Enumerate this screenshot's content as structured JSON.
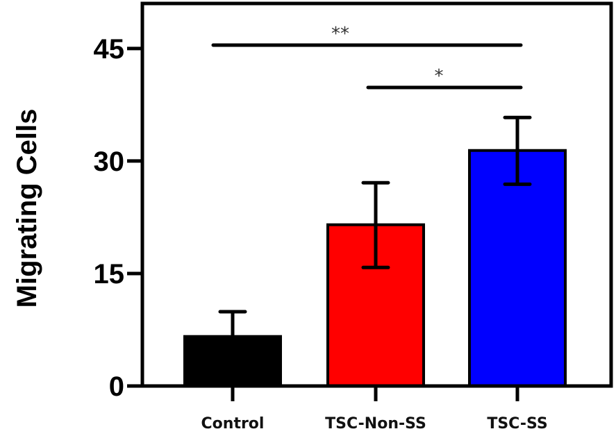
{
  "chart_data": {
    "type": "bar",
    "title": "",
    "xlabel": "",
    "ylabel": "Migrating Cells",
    "categories": [
      "Control",
      "TSC-Non-SS",
      "TSC-SS"
    ],
    "values": [
      6.6,
      21.5,
      31.4
    ],
    "error_upper": [
      9.9,
      27.1,
      35.8
    ],
    "error_lower": [
      null,
      15.8,
      26.9
    ],
    "colors": [
      "#000000",
      "#ff0000",
      "#0000ff"
    ],
    "ylim": [
      0,
      51
    ],
    "yticks": [
      0,
      15,
      30,
      45
    ],
    "ytick_labels": [
      "0",
      "15",
      "30",
      "45"
    ],
    "grid": false,
    "significance": [
      {
        "from": "Control",
        "to": "TSC-SS",
        "label": "**"
      },
      {
        "from": "TSC-Non-SS",
        "to": "TSC-SS",
        "label": "*"
      }
    ]
  }
}
